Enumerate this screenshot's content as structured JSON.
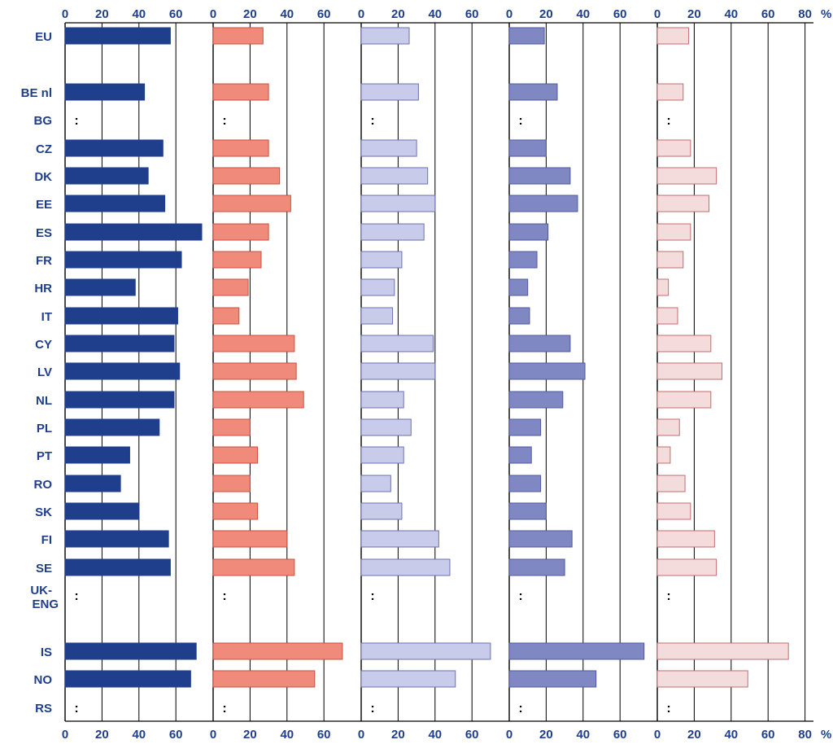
{
  "chart_data": {
    "type": "bar",
    "orientation": "horizontal",
    "title": "",
    "xlim": [
      0,
      80
    ],
    "x_ticks": [
      "0",
      "20",
      "40",
      "60"
    ],
    "x_end_tick": "80",
    "unit_label": "%",
    "missing_marker": ":",
    "grid": true,
    "categories": [
      "EU",
      "BE nl",
      "BG",
      "CZ",
      "DK",
      "EE",
      "ES",
      "FR",
      "HR",
      "IT",
      "CY",
      "LV",
      "NL",
      "PL",
      "PT",
      "RO",
      "SK",
      "FI",
      "SE",
      "UK-ENG",
      "IS",
      "NO",
      "RS"
    ],
    "panels": [
      {
        "color": "#1f3e8c",
        "stroke": "#1f3e8c",
        "values": [
          57,
          43,
          null,
          53,
          45,
          54,
          74,
          63,
          38,
          61,
          59,
          62,
          59,
          51,
          35,
          30,
          40,
          56,
          57,
          null,
          71,
          68,
          null
        ]
      },
      {
        "color": "#f08a7a",
        "stroke": "#c9503e",
        "values": [
          27,
          30,
          null,
          30,
          36,
          42,
          30,
          26,
          19,
          14,
          44,
          45,
          49,
          20,
          24,
          20,
          24,
          40,
          44,
          null,
          70,
          55,
          null
        ]
      },
      {
        "color": "#c8cbe9",
        "stroke": "#6b72b0",
        "values": [
          26,
          31,
          null,
          30,
          36,
          40,
          34,
          22,
          18,
          17,
          39,
          40,
          23,
          27,
          23,
          16,
          22,
          42,
          48,
          null,
          70,
          51,
          null
        ]
      },
      {
        "color": "#8088c4",
        "stroke": "#4f58a0",
        "values": [
          19,
          26,
          null,
          20,
          33,
          37,
          21,
          15,
          10,
          11,
          33,
          41,
          29,
          17,
          12,
          17,
          20,
          34,
          30,
          null,
          73,
          47,
          null
        ]
      },
      {
        "color": "#f5dcdc",
        "stroke": "#c46c6c",
        "values": [
          17,
          14,
          null,
          18,
          32,
          28,
          18,
          14,
          6,
          11,
          29,
          35,
          29,
          12,
          7,
          15,
          18,
          31,
          32,
          null,
          71,
          49,
          null
        ]
      }
    ]
  }
}
